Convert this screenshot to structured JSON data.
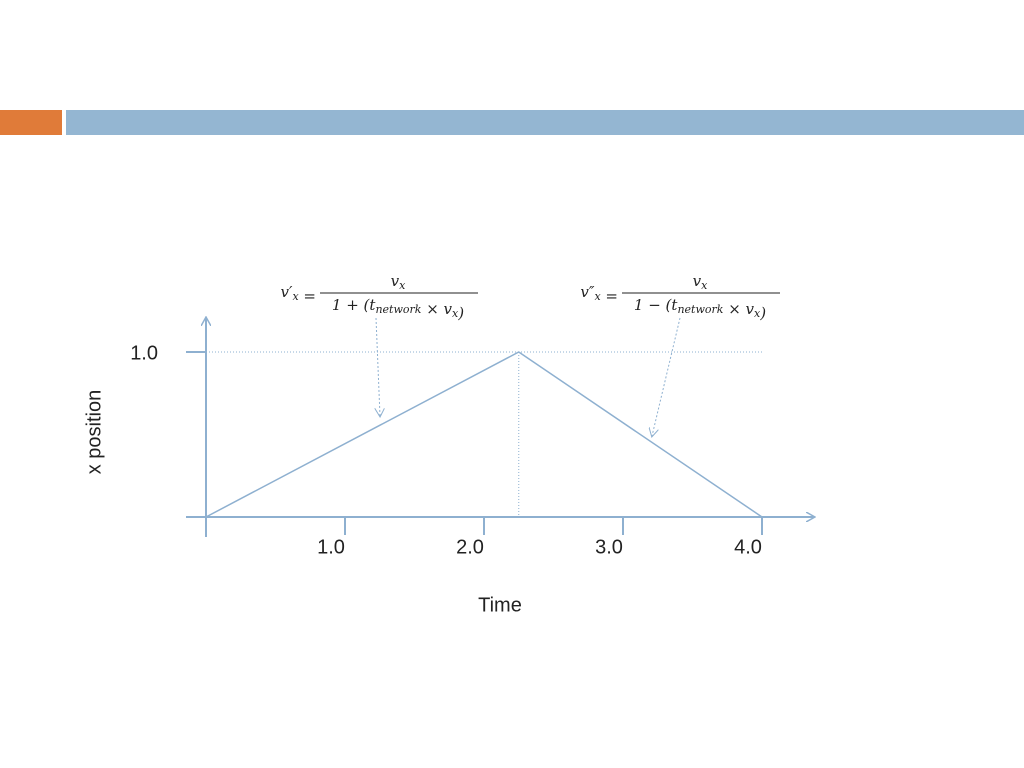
{
  "chart_data": {
    "type": "line",
    "x": [
      0,
      2.25,
      4.0
    ],
    "values": [
      0,
      1.0,
      0
    ],
    "color": "#8eb0d0",
    "xlim": [
      0,
      4.4
    ],
    "ylim": [
      0,
      1.2
    ],
    "xticks": [
      {
        "value": 1,
        "label": "1.0"
      },
      {
        "value": 2,
        "label": "2.0"
      },
      {
        "value": 3,
        "label": "3.0"
      },
      {
        "value": 4,
        "label": "4.0"
      }
    ],
    "yticks": [
      {
        "value": 1,
        "label": "1.0"
      }
    ],
    "xlabel": "Time",
    "ylabel": "x position",
    "annotations": [
      {
        "lhs": [
          {
            "text": "v′",
            "sub": "x"
          },
          {
            "text": " ="
          }
        ],
        "numerator": [
          {
            "text": "v",
            "sub": "x"
          }
        ],
        "denominator": [
          {
            "text": "1 + (t",
            "sub": "network"
          },
          {
            "text": " × v",
            "sub": "x"
          },
          {
            "text": ")"
          }
        ]
      },
      {
        "lhs": [
          {
            "text": "v″",
            "sub": "x"
          },
          {
            "text": " ="
          }
        ],
        "numerator": [
          {
            "text": "v",
            "sub": "x"
          }
        ],
        "denominator": [
          {
            "text": "1 − (t",
            "sub": "network"
          },
          {
            "text": " × v",
            "sub": "x"
          },
          {
            "text": ")"
          }
        ]
      }
    ]
  }
}
